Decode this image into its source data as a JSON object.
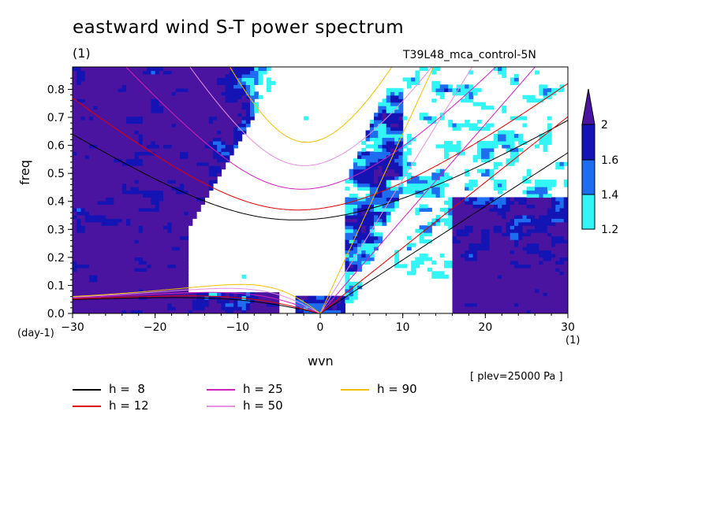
{
  "title": "eastward wind S-T power spectrum",
  "unit_top": "(1)",
  "experiment": "T39L48_mca_control-5N",
  "chart_data": {
    "type": "heatmap",
    "xlabel": "wvn",
    "ylabel": "freq",
    "x_unit": "(1)",
    "y_unit": "(day-1)",
    "xlim": [
      -30,
      30
    ],
    "ylim": [
      0,
      0.88
    ],
    "xticks": [
      "-30",
      "-20",
      "-10",
      "0",
      "10",
      "20",
      "30"
    ],
    "yticks": [
      "0.0",
      "0.1",
      "0.2",
      "0.3",
      "0.4",
      "0.5",
      "0.6",
      "0.7",
      "0.8"
    ],
    "colorbar": {
      "levels": [
        "1.2",
        "1.4",
        "1.6",
        "2"
      ],
      "colors": [
        "#33f5f5",
        "#1e6cf0",
        "#1414b4",
        "#4b14a0"
      ]
    },
    "dispersion_curves": [
      {
        "label": "h =  8",
        "h": 8,
        "color": "#000000"
      },
      {
        "label": "h = 12",
        "h": 12,
        "color": "#e00000"
      },
      {
        "label": "h = 25",
        "h": 25,
        "color": "#d020c0"
      },
      {
        "label": "h = 50",
        "h": 50,
        "color": "#e290e0"
      },
      {
        "label": "h = 90",
        "h": 90,
        "color": "#f0c000"
      }
    ],
    "annotation": "[ plev=25000 Pa ]",
    "grid": false
  }
}
